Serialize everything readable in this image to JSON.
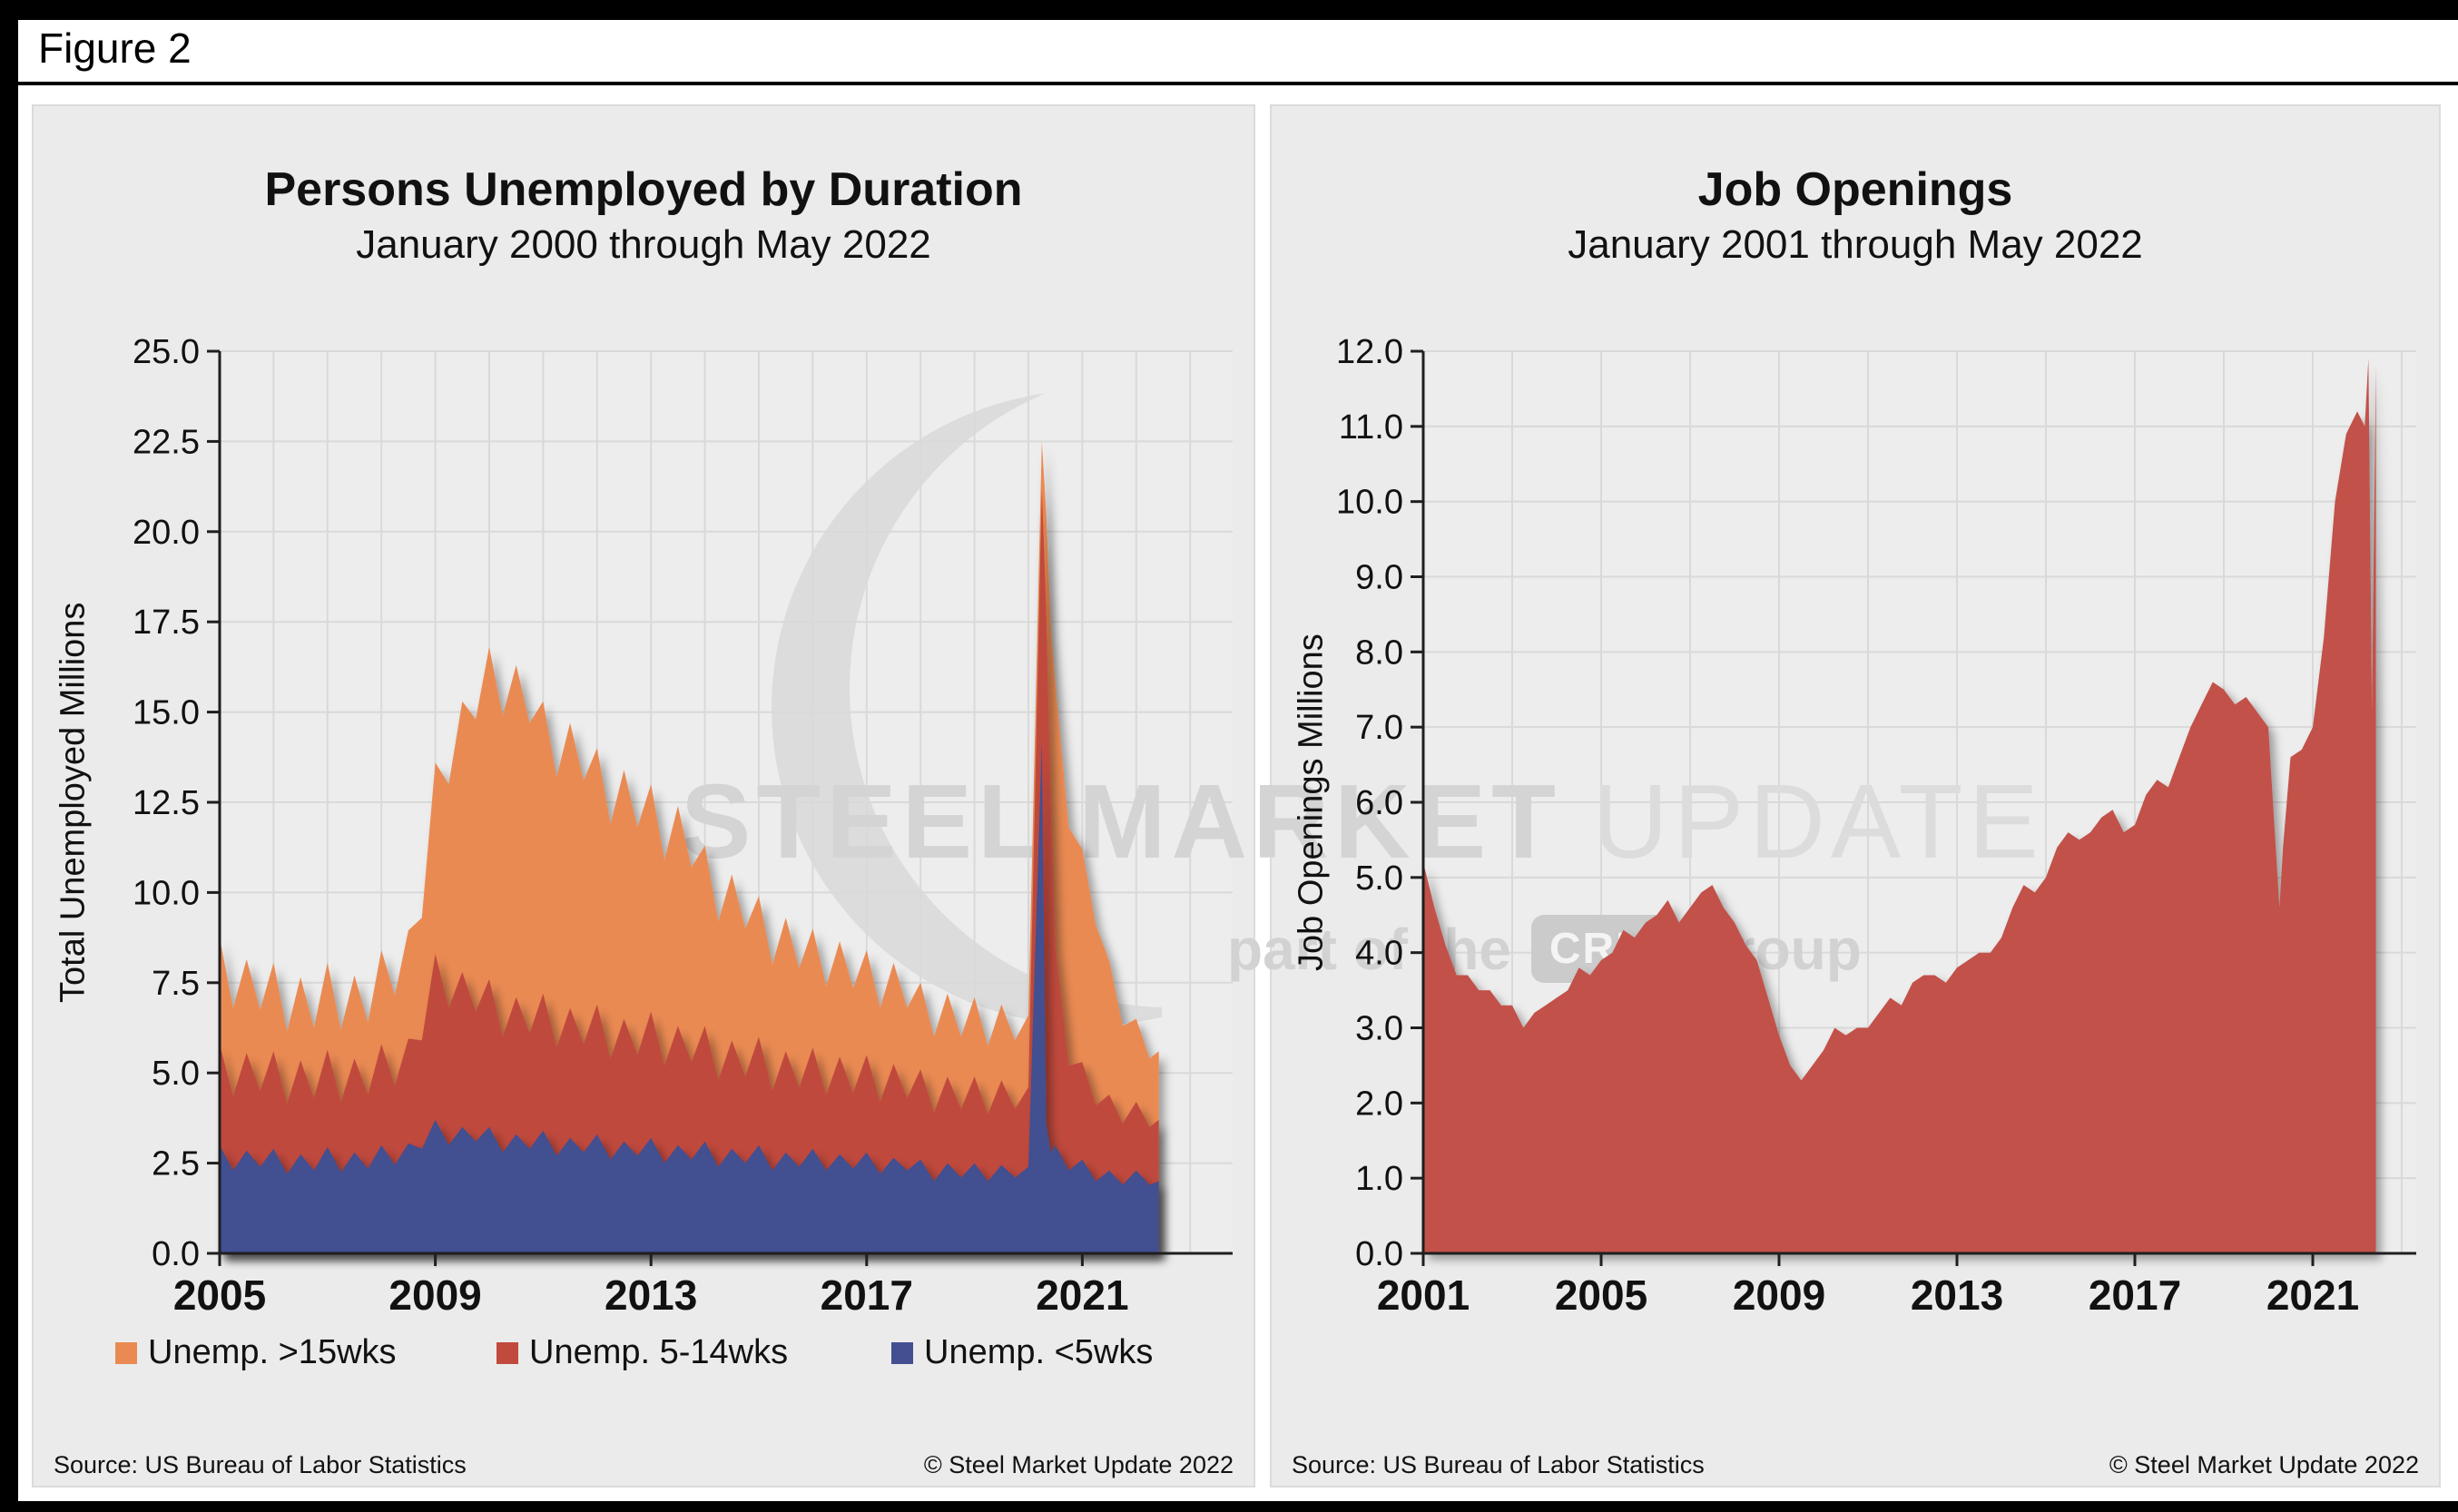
{
  "page": {
    "figure_label": "Figure 2"
  },
  "watermark": {
    "word1": "STEEL",
    "word2": "MARKET",
    "word3": "UPDATE",
    "line2_prefix": "part of the",
    "badge": "CRU",
    "line2_suffix": "Group"
  },
  "charts": [
    {
      "title": "Persons Unemployed by Duration",
      "subtitle": "January 2000 through May 2022",
      "y_axis_title": "Total Unemployed Millions",
      "source": "Source: US Bureau of Labor Statistics",
      "copyright": "© Steel Market Update 2022",
      "chart_data": {
        "type": "area",
        "stacked": true,
        "title": "Persons Unemployed by Duration",
        "ylabel": "Total Unemployed Millions",
        "ylim": [
          0,
          25
        ],
        "ytick_step": 2.5,
        "xticks": [
          2005,
          2009,
          2013,
          2017,
          2021
        ],
        "legend_position": "bottom",
        "x": [
          2005.0,
          2005.25,
          2005.5,
          2005.75,
          2006.0,
          2006.25,
          2006.5,
          2006.75,
          2007.0,
          2007.25,
          2007.5,
          2007.75,
          2008.0,
          2008.25,
          2008.5,
          2008.75,
          2009.0,
          2009.25,
          2009.5,
          2009.75,
          2010.0,
          2010.25,
          2010.5,
          2010.75,
          2011.0,
          2011.25,
          2011.5,
          2011.75,
          2012.0,
          2012.25,
          2012.5,
          2012.75,
          2013.0,
          2013.25,
          2013.5,
          2013.75,
          2014.0,
          2014.25,
          2014.5,
          2014.75,
          2015.0,
          2015.25,
          2015.5,
          2015.75,
          2016.0,
          2016.25,
          2016.5,
          2016.75,
          2017.0,
          2017.25,
          2017.5,
          2017.75,
          2018.0,
          2018.25,
          2018.5,
          2018.75,
          2019.0,
          2019.25,
          2019.5,
          2019.75,
          2020.0,
          2020.25,
          2020.33,
          2020.42,
          2020.5,
          2020.75,
          2021.0,
          2021.25,
          2021.5,
          2021.75,
          2022.0,
          2022.25,
          2022.42
        ],
        "series": [
          {
            "name": "Unemp. >15wks",
            "color": "#EA8A52",
            "values": [
              2.95,
              2.45,
              2.6,
              2.25,
              2.45,
              2.0,
              2.3,
              1.95,
              2.4,
              2.0,
              2.3,
              2.0,
              2.6,
              2.5,
              3.0,
              3.4,
              5.3,
              6.2,
              7.5,
              8.1,
              9.2,
              8.9,
              9.2,
              8.6,
              8.1,
              7.5,
              7.9,
              7.3,
              7.1,
              6.5,
              6.9,
              6.3,
              6.3,
              5.7,
              6.1,
              5.4,
              5.0,
              4.4,
              4.6,
              4.1,
              3.9,
              3.5,
              3.7,
              3.3,
              3.3,
              3.0,
              3.2,
              2.9,
              2.9,
              2.6,
              2.8,
              2.5,
              2.4,
              2.1,
              2.3,
              2.0,
              2.2,
              1.9,
              2.1,
              1.9,
              2.0,
              1.3,
              2.7,
              5.0,
              7.3,
              6.6,
              5.9,
              5.0,
              3.7,
              2.7,
              2.3,
              1.9,
              1.9
            ]
          },
          {
            "name": "Unemp. 5-14wks",
            "color": "#C04A3E",
            "values": [
              2.8,
              2.05,
              2.7,
              2.1,
              2.7,
              1.95,
              2.6,
              2.0,
              2.7,
              1.95,
              2.6,
              2.05,
              2.8,
              2.2,
              2.9,
              3.0,
              4.6,
              3.8,
              4.3,
              3.6,
              4.1,
              3.2,
              3.8,
              3.2,
              3.8,
              3.0,
              3.6,
              3.0,
              3.6,
              2.8,
              3.4,
              2.8,
              3.5,
              2.7,
              3.3,
              2.7,
              3.2,
              2.4,
              3.0,
              2.4,
              3.0,
              2.2,
              2.8,
              2.2,
              2.8,
              2.1,
              2.7,
              2.1,
              2.7,
              2.0,
              2.6,
              2.0,
              2.5,
              1.9,
              2.4,
              1.9,
              2.4,
              1.85,
              2.35,
              1.9,
              2.2,
              7.0,
              14.2,
              9.5,
              5.5,
              2.9,
              2.7,
              2.1,
              2.1,
              1.7,
              1.9,
              1.6,
              1.7
            ]
          },
          {
            "name": "Unemp. <5wks",
            "color": "#434F90",
            "values": [
              3.0,
              2.3,
              2.85,
              2.4,
              2.9,
              2.2,
              2.75,
              2.3,
              2.95,
              2.25,
              2.8,
              2.35,
              3.0,
              2.45,
              3.05,
              2.9,
              3.7,
              3.0,
              3.5,
              3.1,
              3.5,
              2.8,
              3.3,
              2.9,
              3.4,
              2.7,
              3.2,
              2.8,
              3.3,
              2.6,
              3.1,
              2.7,
              3.2,
              2.5,
              3.0,
              2.6,
              3.1,
              2.4,
              2.9,
              2.5,
              3.0,
              2.3,
              2.8,
              2.4,
              2.9,
              2.3,
              2.75,
              2.35,
              2.8,
              2.2,
              2.65,
              2.3,
              2.6,
              2.0,
              2.5,
              2.1,
              2.5,
              2.0,
              2.45,
              2.1,
              2.4,
              14.2,
              3.6,
              2.8,
              3.0,
              2.3,
              2.6,
              2.0,
              2.3,
              1.9,
              2.3,
              1.9,
              2.0
            ]
          }
        ]
      }
    },
    {
      "title": "Job Openings",
      "subtitle": "January 2001 through May 2022",
      "y_axis_title": "Job Openings Millions",
      "source": "Source: US Bureau of Labor Statistics",
      "copyright": "© Steel Market Update 2022",
      "chart_data": {
        "type": "area",
        "stacked": false,
        "title": "Job Openings",
        "ylabel": "Job Openings Millions",
        "ylim": [
          0,
          12
        ],
        "ytick_step": 1.0,
        "xticks": [
          2001,
          2005,
          2009,
          2013,
          2017,
          2021
        ],
        "legend_position": "none",
        "x": [
          2001.0,
          2001.25,
          2001.5,
          2001.75,
          2002.0,
          2002.25,
          2002.5,
          2002.75,
          2003.0,
          2003.25,
          2003.5,
          2003.75,
          2004.0,
          2004.25,
          2004.5,
          2004.75,
          2005.0,
          2005.25,
          2005.5,
          2005.75,
          2006.0,
          2006.25,
          2006.5,
          2006.75,
          2007.0,
          2007.25,
          2007.5,
          2007.75,
          2008.0,
          2008.25,
          2008.5,
          2008.75,
          2009.0,
          2009.25,
          2009.5,
          2009.75,
          2010.0,
          2010.25,
          2010.5,
          2010.75,
          2011.0,
          2011.25,
          2011.5,
          2011.75,
          2012.0,
          2012.25,
          2012.5,
          2012.75,
          2013.0,
          2013.25,
          2013.5,
          2013.75,
          2014.0,
          2014.25,
          2014.5,
          2014.75,
          2015.0,
          2015.25,
          2015.5,
          2015.75,
          2016.0,
          2016.25,
          2016.5,
          2016.75,
          2017.0,
          2017.25,
          2017.5,
          2017.75,
          2018.0,
          2018.25,
          2018.5,
          2018.75,
          2019.0,
          2019.25,
          2019.5,
          2019.75,
          2020.0,
          2020.25,
          2020.33,
          2020.5,
          2020.75,
          2021.0,
          2021.25,
          2021.5,
          2021.75,
          2022.0,
          2022.17,
          2022.25,
          2022.33,
          2022.42
        ],
        "series": [
          {
            "name": "Job Openings",
            "color": "#C25149",
            "values": [
              5.2,
              4.6,
              4.1,
              3.7,
              3.7,
              3.5,
              3.5,
              3.3,
              3.3,
              3.0,
              3.2,
              3.3,
              3.4,
              3.5,
              3.8,
              3.7,
              3.9,
              4.0,
              4.3,
              4.2,
              4.4,
              4.5,
              4.7,
              4.4,
              4.6,
              4.8,
              4.9,
              4.6,
              4.4,
              4.1,
              3.9,
              3.4,
              2.9,
              2.5,
              2.3,
              2.5,
              2.7,
              3.0,
              2.9,
              3.0,
              3.0,
              3.2,
              3.4,
              3.3,
              3.6,
              3.7,
              3.7,
              3.6,
              3.8,
              3.9,
              4.0,
              4.0,
              4.2,
              4.6,
              4.9,
              4.8,
              5.0,
              5.4,
              5.6,
              5.5,
              5.6,
              5.8,
              5.9,
              5.6,
              5.7,
              6.1,
              6.3,
              6.2,
              6.6,
              7.0,
              7.3,
              7.6,
              7.5,
              7.3,
              7.4,
              7.2,
              7.0,
              4.6,
              5.4,
              6.6,
              6.7,
              7.0,
              8.2,
              10.0,
              10.9,
              11.2,
              11.0,
              11.9,
              7.2,
              11.8
            ]
          }
        ]
      }
    }
  ]
}
